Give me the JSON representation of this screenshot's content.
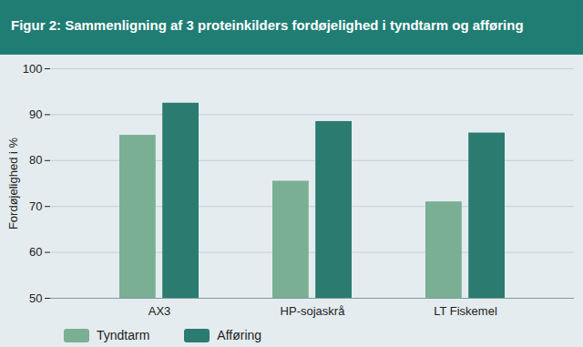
{
  "chart_data": {
    "type": "bar",
    "title": "Figur 2: Sammenligning af 3 proteinkilders fordøjelighed i tyndtarm og afføring",
    "y_label": "Fordøjelighed i %",
    "categories": [
      "AX3",
      "HP-sojaskrå",
      "LT Fiskemel"
    ],
    "series": [
      {
        "name": "Tyndtarm",
        "color": "#7aaf93",
        "values": [
          85.5,
          75.5,
          71
        ]
      },
      {
        "name": "Afføring",
        "color": "#2b7b70",
        "values": [
          92.5,
          88.5,
          86
        ]
      }
    ],
    "ylim": [
      50,
      100
    ],
    "yticks": [
      50,
      60,
      70,
      80,
      90,
      100
    ],
    "grid": true,
    "legend": "bottom-left"
  }
}
